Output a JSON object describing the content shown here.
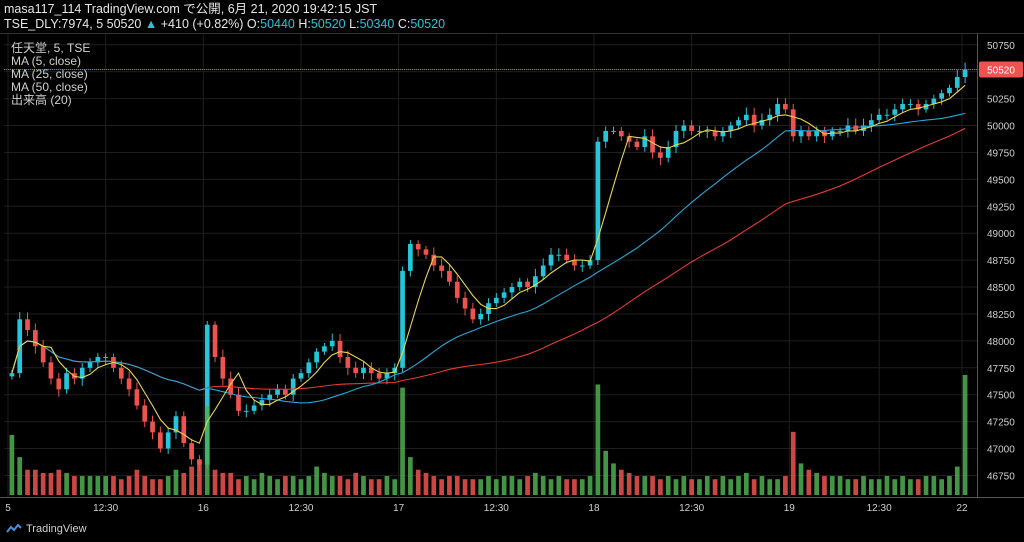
{
  "header": {
    "line1": "masa117_114 TradingView.com で公開, 6月 21, 2020 19:42:15 JST",
    "symbol": "TSE_DLY:7974, 5",
    "last": "50520",
    "change_arrow": "▲",
    "change": "+410 (+0.82%)",
    "o_label": "O:",
    "o": "50440",
    "h_label": "H:",
    "h": "50520",
    "l_label": "L:",
    "l": "50340",
    "c_label": "C:",
    "c": "50520"
  },
  "legend": [
    "任天堂, 5, TSE",
    "MA (5, close)",
    "MA (25, close)",
    "MA (50, close)",
    "出来高 (20)"
  ],
  "footer": {
    "brand": "TradingView"
  },
  "colors": {
    "up": "#26c6da",
    "down": "#ef5350",
    "vol_up": "#4caf50",
    "vol_down": "#ef5350",
    "ma5": "#e8d44d",
    "ma25": "#26a5d9",
    "ma50": "#e53935",
    "price_line": "#ef5350"
  },
  "chart_data": {
    "type": "candlestick",
    "y_ticks": [
      46750,
      47000,
      47250,
      47500,
      47750,
      48000,
      48250,
      48500,
      48750,
      49000,
      49250,
      49500,
      49750,
      50000,
      50250,
      50500,
      50750
    ],
    "ylim": [
      46550,
      50850
    ],
    "current_price_label": "50520",
    "x_tick_labels": [
      "5",
      "12:30",
      "16",
      "12:30",
      "17",
      "12:30",
      "18",
      "12:30",
      "19",
      "12:30",
      "22"
    ],
    "sessions": [
      {
        "day": "5",
        "closes": [
          47700,
          48200,
          48100,
          47950,
          47800,
          47650,
          47550,
          47700,
          47650,
          47750,
          47800,
          47850,
          47850,
          47750,
          47650,
          47550,
          47400,
          47250,
          47150,
          47000,
          47150,
          47300,
          47050,
          46900,
          46850
        ]
      },
      {
        "day": "16",
        "closes": [
          48150,
          47850,
          47650,
          47500,
          47350,
          47350,
          47400,
          47450,
          47500,
          47550,
          47500,
          47650,
          47700,
          47800,
          47900,
          47950,
          48000,
          47850,
          47750,
          47700,
          47750,
          47700,
          47650,
          47700,
          47750
        ]
      },
      {
        "day": "17",
        "closes": [
          48650,
          48900,
          48850,
          48800,
          48700,
          48650,
          48550,
          48400,
          48300,
          48200,
          48250,
          48350,
          48400,
          48450,
          48500,
          48550,
          48500,
          48600,
          48700,
          48800,
          48800,
          48750,
          48700,
          48700,
          48750
        ]
      },
      {
        "day": "18",
        "closes": [
          49850,
          49950,
          49950,
          49900,
          49850,
          49800,
          49900,
          49750,
          49700,
          49800,
          49950,
          50000,
          49950,
          49950,
          49950,
          49900,
          49950,
          50000,
          50050,
          50100,
          50000,
          50050,
          50100,
          50200,
          50150
        ]
      },
      {
        "day": "19",
        "closes": [
          49900,
          49950,
          49900,
          49950,
          49900,
          49950,
          49950,
          50000,
          49950,
          50000,
          50050,
          50100,
          50100,
          50150,
          50200,
          50200,
          50150,
          50200,
          50250,
          50300,
          50350,
          50450,
          50520
        ]
      }
    ],
    "volume": [
      95,
      60,
      40,
      40,
      35,
      35,
      40,
      35,
      30,
      30,
      30,
      30,
      30,
      30,
      25,
      30,
      40,
      30,
      25,
      25,
      30,
      40,
      35,
      45,
      55,
      140,
      40,
      35,
      35,
      25,
      30,
      25,
      35,
      30,
      25,
      30,
      30,
      25,
      30,
      45,
      35,
      30,
      30,
      25,
      35,
      30,
      25,
      25,
      30,
      25,
      170,
      60,
      40,
      35,
      30,
      25,
      30,
      30,
      25,
      25,
      25,
      30,
      25,
      30,
      30,
      25,
      30,
      35,
      30,
      25,
      30,
      25,
      25,
      25,
      30,
      175,
      70,
      50,
      40,
      35,
      30,
      30,
      30,
      25,
      30,
      25,
      30,
      25,
      25,
      30,
      25,
      30,
      25,
      30,
      35,
      25,
      30,
      25,
      25,
      30,
      100,
      50,
      40,
      35,
      30,
      30,
      30,
      25,
      25,
      30,
      25,
      25,
      30,
      25,
      30,
      25,
      25,
      30,
      30,
      25,
      30,
      45,
      190
    ]
  }
}
